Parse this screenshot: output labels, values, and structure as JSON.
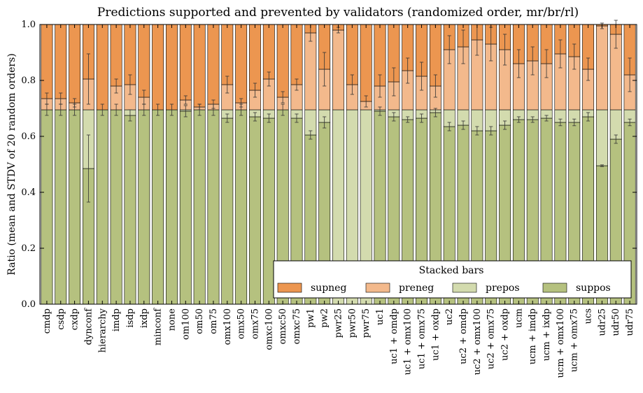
{
  "chart_data": {
    "type": "bar",
    "stacked": true,
    "title": "Predictions supported and prevented by validators (randomized order, mr/br/rl)",
    "xlabel": "",
    "ylabel": "Ratio (mean and STDV of 20 random orders)",
    "ylim": [
      0.0,
      1.0
    ],
    "yticks": [
      "0.0",
      "0.2",
      "0.4",
      "0.6",
      "0.8",
      "1.0"
    ],
    "grid": false,
    "legend": {
      "title": "Stacked bars",
      "placement": "bottom-right",
      "ncol": 4
    },
    "categories": [
      "cmdp",
      "csdp",
      "cxdp",
      "dynconf",
      "hierarchy",
      "imdp",
      "isdp",
      "ixdp",
      "minconf",
      "none",
      "om100",
      "om50",
      "om75",
      "omx100",
      "omx50",
      "omx75",
      "omxc100",
      "omxc50",
      "omxc75",
      "pw1",
      "pw2",
      "pwr25",
      "pwr50",
      "pwr75",
      "uc1",
      "uc1 + omdp",
      "uc1 + omx100",
      "uc1 + omx75",
      "uc1 + oxdp",
      "uc2",
      "uc2 + omdp",
      "uc2 + omx100",
      "uc2 + omx75",
      "uc2 + oxdp",
      "ucm",
      "ucm + imdp",
      "ucm + ixdp",
      "ucm + omx100",
      "ucm + omx75",
      "ucs",
      "udr25",
      "udr50",
      "udr75"
    ],
    "series": [
      {
        "name": "suppos",
        "color": "#b5c17f",
        "values": [
          0.695,
          0.695,
          0.695,
          0.485,
          0.695,
          0.695,
          0.675,
          0.695,
          0.695,
          0.695,
          0.69,
          0.695,
          0.695,
          0.665,
          0.695,
          0.67,
          0.665,
          0.695,
          0.665,
          0.605,
          0.65,
          0.0,
          0.0,
          0.0,
          0.69,
          0.67,
          0.66,
          0.665,
          0.685,
          0.635,
          0.64,
          0.62,
          0.62,
          0.64,
          0.66,
          0.66,
          0.665,
          0.65,
          0.65,
          0.67,
          0.495,
          0.59,
          0.65
        ],
        "errors": [
          0.02,
          0.02,
          0.02,
          0.12,
          0.02,
          0.02,
          0.02,
          0.02,
          0.02,
          0.02,
          0.02,
          0.02,
          0.02,
          0.015,
          0.02,
          0.015,
          0.015,
          0.02,
          0.015,
          0.015,
          0.02,
          0.0,
          0.0,
          0.0,
          0.015,
          0.015,
          0.01,
          0.015,
          0.015,
          0.015,
          0.015,
          0.015,
          0.015,
          0.015,
          0.01,
          0.01,
          0.01,
          0.012,
          0.012,
          0.015,
          0.003,
          0.015,
          0.012
        ]
      },
      {
        "name": "prepos",
        "color": "#d3dbae",
        "values": [
          0.0,
          0.0,
          0.0,
          0.21,
          0.0,
          0.0,
          0.02,
          0.0,
          0.0,
          0.0,
          0.005,
          0.0,
          0.0,
          0.03,
          0.0,
          0.025,
          0.03,
          0.0,
          0.03,
          0.09,
          0.045,
          0.695,
          0.695,
          0.695,
          0.005,
          0.025,
          0.035,
          0.03,
          0.01,
          0.06,
          0.055,
          0.075,
          0.075,
          0.055,
          0.035,
          0.035,
          0.03,
          0.045,
          0.045,
          0.025,
          0.2,
          0.105,
          0.045
        ],
        "errors": [
          0.0,
          0.0,
          0.0,
          0.0,
          0.0,
          0.0,
          0.0,
          0.0,
          0.0,
          0.0,
          0.0,
          0.0,
          0.0,
          0.0,
          0.0,
          0.0,
          0.0,
          0.0,
          0.0,
          0.0,
          0.0,
          0.0,
          0.0,
          0.0,
          0.0,
          0.0,
          0.0,
          0.0,
          0.0,
          0.0,
          0.0,
          0.0,
          0.0,
          0.0,
          0.0,
          0.0,
          0.0,
          0.0,
          0.0,
          0.0,
          0.0,
          0.0,
          0.0
        ]
      },
      {
        "name": "preneg",
        "color": "#f3b98c",
        "values": [
          0.04,
          0.04,
          0.025,
          0.11,
          0.0,
          0.085,
          0.09,
          0.045,
          0.0,
          0.0,
          0.035,
          0.01,
          0.02,
          0.09,
          0.025,
          0.07,
          0.11,
          0.045,
          0.09,
          0.275,
          0.145,
          0.285,
          0.09,
          0.03,
          0.085,
          0.1,
          0.14,
          0.12,
          0.085,
          0.215,
          0.225,
          0.25,
          0.235,
          0.215,
          0.165,
          0.175,
          0.165,
          0.2,
          0.19,
          0.145,
          0.3,
          0.27,
          0.125
        ],
        "errors": [
          0.02,
          0.02,
          0.015,
          0.09,
          0.0,
          0.025,
          0.035,
          0.025,
          0.0,
          0.0,
          0.015,
          0.01,
          0.015,
          0.03,
          0.015,
          0.025,
          0.025,
          0.02,
          0.02,
          0.03,
          0.06,
          0.01,
          0.035,
          0.02,
          0.04,
          0.05,
          0.045,
          0.05,
          0.04,
          0.05,
          0.06,
          0.055,
          0.06,
          0.055,
          0.05,
          0.05,
          0.05,
          0.05,
          0.045,
          0.04,
          0.01,
          0.05,
          0.06
        ]
      },
      {
        "name": "supneg",
        "color": "#ec9650",
        "values": [
          0.265,
          0.265,
          0.28,
          0.195,
          0.305,
          0.22,
          0.215,
          0.26,
          0.305,
          0.305,
          0.27,
          0.295,
          0.285,
          0.215,
          0.28,
          0.235,
          0.195,
          0.26,
          0.215,
          0.03,
          0.16,
          0.02,
          0.215,
          0.275,
          0.22,
          0.205,
          0.165,
          0.185,
          0.22,
          0.09,
          0.08,
          0.055,
          0.07,
          0.09,
          0.14,
          0.13,
          0.14,
          0.105,
          0.115,
          0.16,
          0.005,
          0.035,
          0.18
        ],
        "errors": [
          0.0,
          0.0,
          0.0,
          0.0,
          0.0,
          0.0,
          0.0,
          0.0,
          0.0,
          0.0,
          0.0,
          0.0,
          0.0,
          0.0,
          0.0,
          0.0,
          0.0,
          0.0,
          0.0,
          0.0,
          0.0,
          0.0,
          0.0,
          0.0,
          0.0,
          0.0,
          0.0,
          0.0,
          0.0,
          0.0,
          0.0,
          0.0,
          0.0,
          0.0,
          0.0,
          0.0,
          0.0,
          0.0,
          0.0,
          0.0,
          0.0,
          0.0,
          0.0
        ]
      }
    ],
    "legend_order": [
      "supneg",
      "preneg",
      "prepos",
      "suppos"
    ]
  }
}
